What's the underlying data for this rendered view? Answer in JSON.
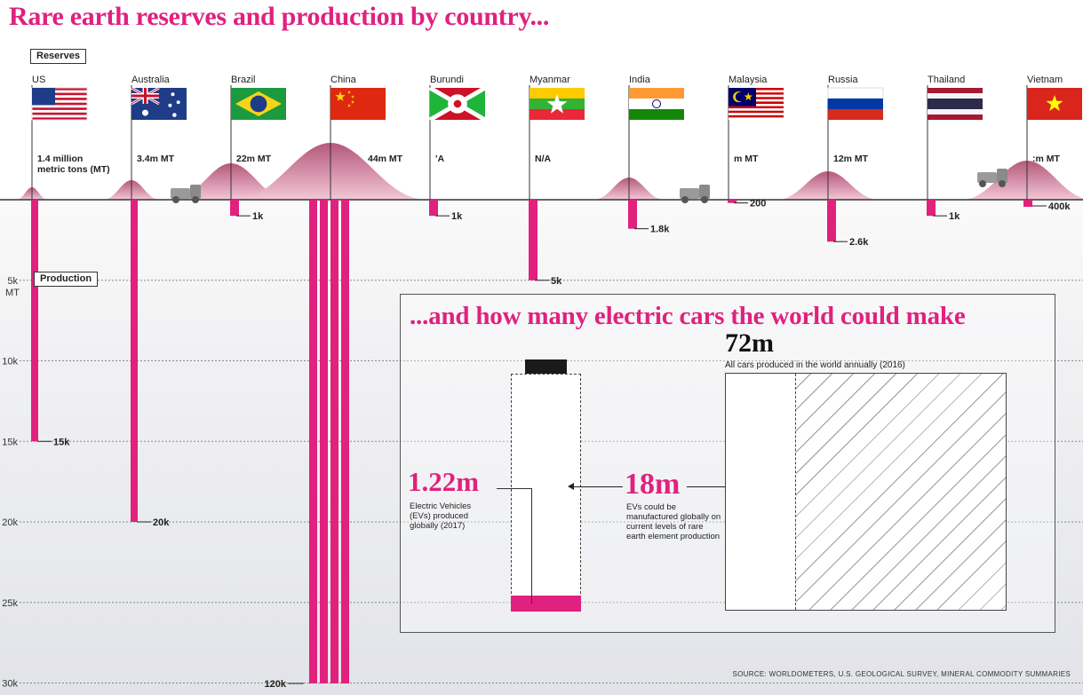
{
  "title": "Rare earth reserves and production by country...",
  "legend": {
    "reserves_label": "Reserves",
    "production_label": "Production"
  },
  "colors": {
    "accent": "#e0217e",
    "mound": "#c9748f",
    "text": "#222222"
  },
  "chart_data": {
    "type": "bar",
    "title": "Rare earth reserves and production by country...",
    "production_axis": {
      "ticks": [
        {
          "value": 5000,
          "label": "5k"
        },
        {
          "value": 10000,
          "label": "10k"
        },
        {
          "value": 15000,
          "label": "15k"
        },
        {
          "value": 20000,
          "label": "20k"
        },
        {
          "value": 25000,
          "label": "25k"
        },
        {
          "value": 30000,
          "label": "30k"
        }
      ],
      "unit": "MT",
      "range": [
        0,
        30000
      ],
      "grid": true
    },
    "countries": [
      {
        "name": "US",
        "flag": "us-flag",
        "reserve": 1.4,
        "reserve_label": "1.4 million\nmetric tons (MT)",
        "production": 15000,
        "production_label": "15k"
      },
      {
        "name": "Australia",
        "flag": "australia-flag",
        "reserve": 3.4,
        "reserve_label": "3.4m MT",
        "production": 20000,
        "production_label": "20k"
      },
      {
        "name": "Brazil",
        "flag": "brazil-flag",
        "reserve": 22,
        "reserve_label": "22m MT",
        "production": 1000,
        "production_label": "1k"
      },
      {
        "name": "China",
        "flag": "china-flag",
        "reserve": 44,
        "reserve_label": "44m MT",
        "production": 120000,
        "production_label": "120k"
      },
      {
        "name": "Burundi",
        "flag": "burundi-flag",
        "reserve": null,
        "reserve_label": "'A",
        "production": 1000,
        "production_label": "1k"
      },
      {
        "name": "Myanmar",
        "flag": "myanmar-flag",
        "reserve": null,
        "reserve_label": "N/A",
        "production": 5000,
        "production_label": "5k"
      },
      {
        "name": "India",
        "flag": "india-flag",
        "reserve": 6.9,
        "reserve_label": "",
        "production": 1800,
        "production_label": "1.8k"
      },
      {
        "name": "Malaysia",
        "flag": "malaysia-flag",
        "reserve": 0.03,
        "reserve_label": "m MT",
        "production": 200,
        "production_label": "200"
      },
      {
        "name": "Russia",
        "flag": "russia-flag",
        "reserve": 12,
        "reserve_label": "12m MT",
        "production": 2600,
        "production_label": "2.6k"
      },
      {
        "name": "Thailand",
        "flag": "thailand-flag",
        "reserve": null,
        "reserve_label": "",
        "production": 1000,
        "production_label": "1k"
      },
      {
        "name": "Vietnam",
        "flag": "vietnam-flag",
        "reserve": 22,
        "reserve_label": ":m MT",
        "production": 400000,
        "production_label": "400k"
      }
    ]
  },
  "inset": {
    "title": "...and how many electric cars the world could make",
    "ev_value": "1.22m",
    "ev_label": "Electric Vehicles (EVs) produced globally (2017)",
    "capacity_value": "18m",
    "capacity_label": "EVs could be manufactured globally on current levels of rare earth element production",
    "cars_value": "72m",
    "cars_label": "All cars produced in the world annually (2016)",
    "battery_fill_fraction": 0.068
  },
  "source": "SOURCE: WORLDOMETERS, U.S. GEOLOGICAL SURVEY, MINERAL COMMODITY SUMMARIES"
}
